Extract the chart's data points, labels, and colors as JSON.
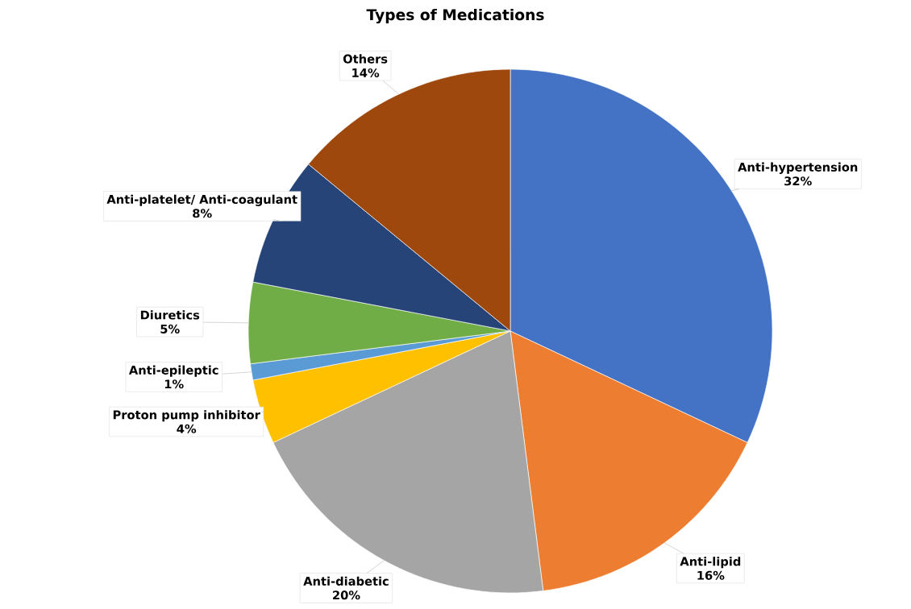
{
  "chart_data": {
    "type": "pie",
    "title": "Types of Medications",
    "categories": [
      "Anti-hypertension",
      "Anti-lipid",
      "Anti-diabetic",
      "Proton pump inhibitor",
      "Anti-epileptic",
      "Diuretics",
      "Anti-platelet/ Anti-coagulant",
      "Others"
    ],
    "values": [
      32,
      16,
      20,
      4,
      1,
      5,
      8,
      14
    ],
    "value_labels": [
      "32%",
      "16%",
      "20%",
      "4%",
      "1%",
      "5%",
      "8%",
      "14%"
    ],
    "colors": [
      "#4472c4",
      "#ed7d31",
      "#a5a5a5",
      "#ffc000",
      "#5b9bd5",
      "#70ad47",
      "#264478",
      "#9e480e"
    ]
  }
}
